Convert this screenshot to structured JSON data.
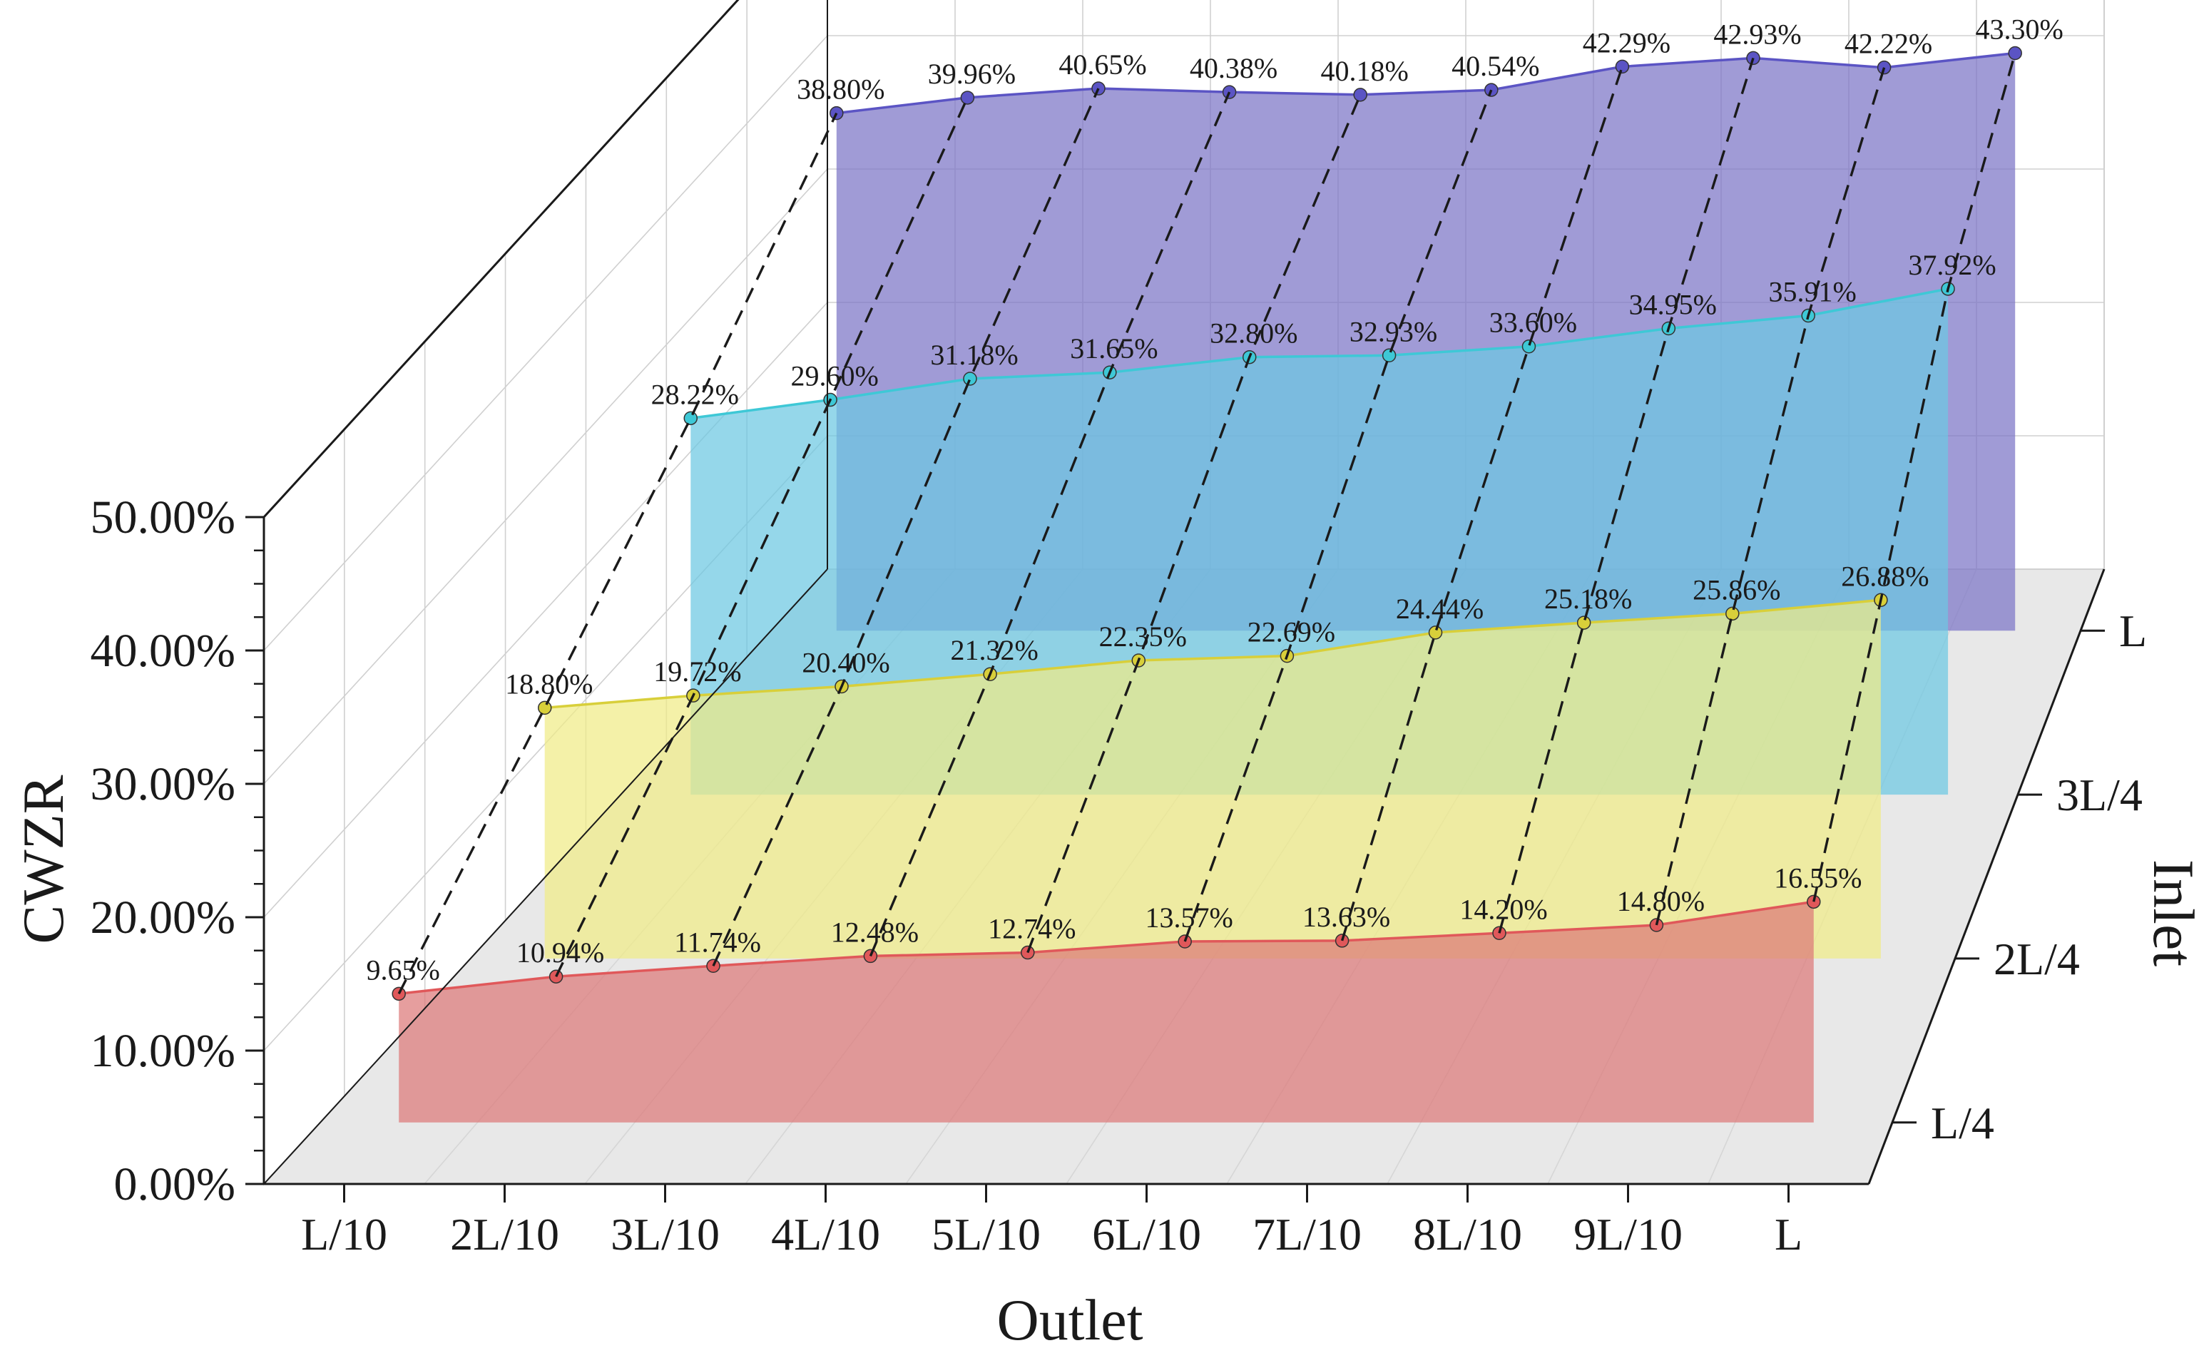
{
  "chart_data": {
    "type": "area",
    "view": "3d",
    "title": "",
    "xlabel": "Outlet",
    "ylabel": "Inlet",
    "zlabel": "CWZR",
    "x_categories": [
      "L/10",
      "2L/10",
      "3L/10",
      "4L/10",
      "5L/10",
      "6L/10",
      "7L/10",
      "8L/10",
      "9L/10",
      "L"
    ],
    "y_categories": [
      "L/4",
      "2L/4",
      "3L/4",
      "L"
    ],
    "z_ticks": [
      "0.00%",
      "10.00%",
      "20.00%",
      "30.00%",
      "40.00%",
      "50.00%"
    ],
    "zlim": [
      0,
      50
    ],
    "grid": true,
    "series": [
      {
        "inlet": "L/4",
        "color": "#e0585a",
        "fill": "#dc7878",
        "values": [
          9.65,
          10.94,
          11.74,
          12.48,
          12.74,
          13.57,
          13.63,
          14.2,
          14.8,
          16.55
        ],
        "labels": [
          "9.65%",
          "10.94%",
          "11.74%",
          "12.48%",
          "12.74%",
          "13.57%",
          "13.63%",
          "14.20%",
          "14.80%",
          "16.55%"
        ]
      },
      {
        "inlet": "2L/4",
        "color": "#d8cf3a",
        "fill": "#f0ec86",
        "values": [
          18.8,
          19.72,
          20.4,
          21.32,
          22.35,
          22.69,
          24.44,
          25.18,
          25.86,
          26.88
        ],
        "labels": [
          "18.80%",
          "19.72%",
          "20.40%",
          "21.32%",
          "22.35%",
          "22.69%",
          "24.44%",
          "25.18%",
          "25.86%",
          "26.88%"
        ]
      },
      {
        "inlet": "3L/4",
        "color": "#3ec8d6",
        "fill": "#6cc8e2",
        "values": [
          28.22,
          29.6,
          31.18,
          31.65,
          32.8,
          32.93,
          33.6,
          34.95,
          35.91,
          37.92
        ],
        "labels": [
          "28.22%",
          "29.60%",
          "31.18%",
          "31.65%",
          "32.80%",
          "32.93%",
          "33.60%",
          "34.95%",
          "35.91%",
          "37.92%"
        ]
      },
      {
        "inlet": "L",
        "color": "#5b54c4",
        "fill": "#7c74c6",
        "values": [
          38.8,
          39.96,
          40.65,
          40.38,
          40.18,
          40.54,
          42.29,
          42.93,
          42.22,
          43.3
        ],
        "labels": [
          "38.80%",
          "39.96%",
          "40.65%",
          "40.38%",
          "40.18%",
          "40.54%",
          "42.29%",
          "42.93%",
          "42.22%",
          "43.30%"
        ]
      }
    ]
  }
}
